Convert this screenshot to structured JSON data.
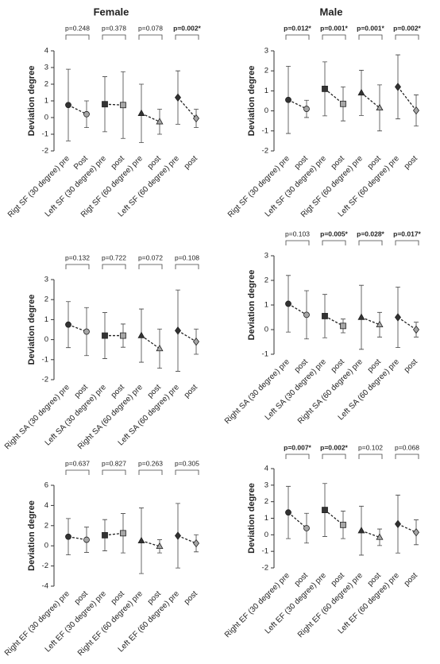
{
  "column_titles": [
    "Female",
    "Male"
  ],
  "chart_data": [
    {
      "type": "errorbar",
      "y_label": "Deviation degree",
      "categories": [
        "Rigt SF (30 degree) pre",
        "Post",
        "Left SF (30 degree) pre",
        "post",
        "Rigt SF (60 degree) pre",
        "post",
        "Left SF (60 degree) pre",
        "post"
      ],
      "values": [
        0.75,
        0.2,
        0.8,
        0.75,
        0.25,
        -0.25,
        1.2,
        -0.05
      ],
      "errors": [
        2.15,
        0.8,
        1.65,
        2.0,
        1.75,
        0.75,
        1.6,
        0.55
      ],
      "p_values": [
        "p=0.248",
        "p=0.378",
        "p=0.078",
        "p=0.002*"
      ],
      "p_bold": [
        false,
        false,
        false,
        true
      ],
      "markers": [
        "circle",
        "square",
        "triangle",
        "diamond"
      ],
      "pre_color": "#333333",
      "post_color": "#a6a6a6",
      "ylim": [
        -2,
        4
      ],
      "yticks": [
        -2,
        -1,
        0,
        1,
        2,
        3,
        4
      ]
    },
    {
      "type": "errorbar",
      "y_label": "Deviation degree",
      "categories": [
        "Rigt SF (30 degree) pre",
        "post",
        "Left SF (30 degree) pre",
        "post",
        "Rigt SF (60 degree) pre",
        "post",
        "Left SF (60 degree) pre",
        "post"
      ],
      "values": [
        0.55,
        0.1,
        1.1,
        0.35,
        0.9,
        0.15,
        1.2,
        0.02
      ],
      "errors": [
        1.68,
        0.43,
        1.35,
        0.85,
        1.13,
        1.15,
        1.6,
        0.78
      ],
      "p_values": [
        "p=0.012*",
        "p=0.001*",
        "p=0.001*",
        "p=0.002*"
      ],
      "p_bold": [
        true,
        true,
        true,
        true
      ],
      "markers": [
        "circle",
        "square",
        "triangle",
        "diamond"
      ],
      "pre_color": "#333333",
      "post_color": "#a6a6a6",
      "ylim": [
        -2,
        3
      ],
      "yticks": [
        -2,
        -1,
        0,
        1,
        2,
        3
      ]
    },
    {
      "type": "errorbar",
      "y_label": "Deviation degree",
      "categories": [
        "Right SA (30 degree) pre",
        "post",
        "Left SA (30 degree) pre",
        "post",
        "Right SA (60 degree) pre",
        "post",
        "Left SA (60 degree) pre",
        "post"
      ],
      "values": [
        0.75,
        0.4,
        0.2,
        0.2,
        0.2,
        -0.45,
        0.45,
        -0.1
      ],
      "errors": [
        1.15,
        1.2,
        1.15,
        0.58,
        1.33,
        0.98,
        2.03,
        0.63
      ],
      "p_values": [
        "p=0.132",
        "p=0.722",
        "p=0.072",
        "p=0.108"
      ],
      "p_bold": [
        false,
        false,
        false,
        false
      ],
      "markers": [
        "circle",
        "square",
        "triangle",
        "diamond"
      ],
      "pre_color": "#333333",
      "post_color": "#a6a6a6",
      "ylim": [
        -2,
        3
      ],
      "yticks": [
        -2,
        -1,
        0,
        1,
        2,
        3
      ]
    },
    {
      "type": "errorbar",
      "y_label": "Deviation degree",
      "categories": [
        "Right SA (30 degree) pre",
        "post",
        "Left SA (30 degree) pre",
        "post",
        "Right SA (60 degree) pre",
        "post",
        "Left SA (60 degree) pre",
        "post"
      ],
      "values": [
        1.05,
        0.6,
        0.55,
        0.15,
        0.5,
        0.2,
        0.5,
        0.0
      ],
      "errors": [
        1.15,
        0.98,
        0.88,
        0.28,
        1.3,
        0.5,
        1.23,
        0.3
      ],
      "p_values": [
        "p=0.103",
        "p=0.005*",
        "p=0.028*",
        "p=0.017*"
      ],
      "p_bold": [
        false,
        true,
        true,
        true
      ],
      "markers": [
        "circle",
        "square",
        "triangle",
        "diamond"
      ],
      "pre_color": "#333333",
      "post_color": "#a6a6a6",
      "ylim": [
        -1,
        3
      ],
      "yticks": [
        -1,
        0,
        1,
        2,
        3
      ]
    },
    {
      "type": "errorbar",
      "y_label": "Deviation degree",
      "categories": [
        "Right EF (30 degree) pre",
        "post",
        "Left EF (30 degree) pre",
        "post",
        "Right EF (60 degree) pre",
        "post",
        "Left EF (60 degree) pre",
        "post"
      ],
      "values": [
        0.9,
        0.6,
        1.05,
        1.25,
        0.5,
        -0.05,
        1.0,
        0.25
      ],
      "errors": [
        1.8,
        1.25,
        1.55,
        1.95,
        3.25,
        0.65,
        3.2,
        0.85
      ],
      "p_values": [
        "p=0.637",
        "p=0.827",
        "p=0.263",
        "p=0.305"
      ],
      "p_bold": [
        false,
        false,
        false,
        false
      ],
      "markers": [
        "circle",
        "square",
        "triangle",
        "diamond"
      ],
      "pre_color": "#333333",
      "post_color": "#a6a6a6",
      "ylim": [
        -4,
        6
      ],
      "yticks": [
        -4,
        -2,
        0,
        2,
        4,
        6
      ]
    },
    {
      "type": "errorbar",
      "y_label": "Deviation degree",
      "categories": [
        "Right EF (30 degree) pre",
        "post",
        "Left EF (30 degree) pre",
        "post",
        "Right EF (60 degree) pre",
        "post",
        "Left EF (60 degree) pre",
        "post"
      ],
      "values": [
        1.35,
        0.4,
        1.5,
        0.6,
        0.25,
        -0.15,
        0.65,
        0.15
      ],
      "errors": [
        1.58,
        0.9,
        1.6,
        0.83,
        1.48,
        0.5,
        1.75,
        0.75
      ],
      "p_values": [
        "p=0.007*",
        "p=0.002*",
        "p=0.102",
        "p=0.068"
      ],
      "p_bold": [
        true,
        true,
        false,
        false
      ],
      "markers": [
        "circle",
        "square",
        "triangle",
        "diamond"
      ],
      "pre_color": "#333333",
      "post_color": "#a6a6a6",
      "ylim": [
        -2,
        4
      ],
      "yticks": [
        -2,
        -1,
        0,
        1,
        2,
        3,
        4
      ]
    }
  ]
}
